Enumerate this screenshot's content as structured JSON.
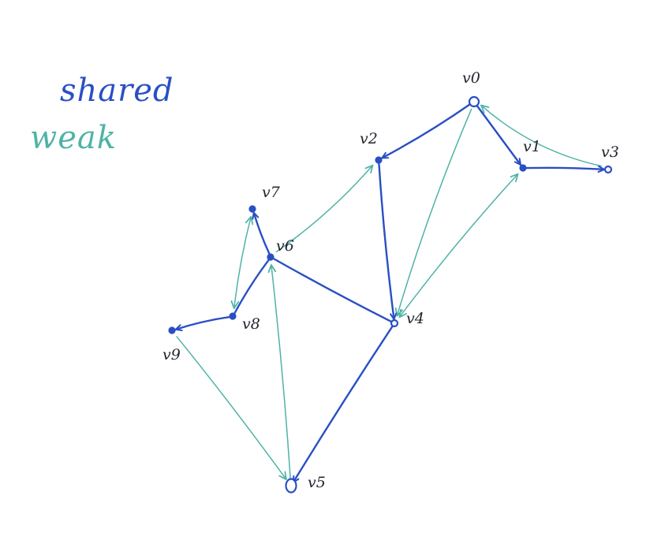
{
  "legend": {
    "shared_label": "shared",
    "weak_label": "weak"
  },
  "colors": {
    "shared": "#2a4fc4",
    "weak": "#4fb3a6",
    "label": "#22262e",
    "background": "#ffffff"
  },
  "nodes": [
    {
      "id": "v0",
      "label": "v0"
    },
    {
      "id": "v1",
      "label": "v1"
    },
    {
      "id": "v2",
      "label": "v2"
    },
    {
      "id": "v3",
      "label": "v3"
    },
    {
      "id": "v4",
      "label": "v4"
    },
    {
      "id": "v5",
      "label": "v5"
    },
    {
      "id": "v6",
      "label": "v6"
    },
    {
      "id": "v7",
      "label": "v7"
    },
    {
      "id": "v8",
      "label": "v8"
    },
    {
      "id": "v9",
      "label": "v9"
    }
  ],
  "edges": [
    {
      "from": "v0",
      "to": "v2",
      "type": "shared",
      "direction": "forward"
    },
    {
      "from": "v0",
      "to": "v1",
      "type": "shared",
      "direction": "forward"
    },
    {
      "from": "v1",
      "to": "v3",
      "type": "shared",
      "direction": "forward"
    },
    {
      "from": "v2",
      "to": "v4",
      "type": "shared",
      "direction": "forward"
    },
    {
      "from": "v6",
      "to": "v4",
      "type": "shared",
      "direction": "none"
    },
    {
      "from": "v4",
      "to": "v5",
      "type": "shared",
      "direction": "forward"
    },
    {
      "from": "v6",
      "to": "v7",
      "type": "shared",
      "direction": "forward"
    },
    {
      "from": "v6",
      "to": "v8",
      "type": "shared",
      "direction": "none"
    },
    {
      "from": "v8",
      "to": "v9",
      "type": "shared",
      "direction": "forward"
    },
    {
      "from": "v3",
      "to": "v0",
      "type": "weak",
      "direction": "forward"
    },
    {
      "from": "v0",
      "to": "v4",
      "type": "weak",
      "direction": "forward"
    },
    {
      "from": "v4",
      "to": "v1",
      "type": "weak",
      "direction": "both"
    },
    {
      "from": "v6",
      "to": "v2",
      "type": "weak",
      "direction": "forward"
    },
    {
      "from": "v7",
      "to": "v8",
      "type": "weak",
      "direction": "both"
    },
    {
      "from": "v5",
      "to": "v6",
      "type": "weak",
      "direction": "forward"
    },
    {
      "from": "v9",
      "to": "v5",
      "type": "weak",
      "direction": "forward"
    }
  ]
}
